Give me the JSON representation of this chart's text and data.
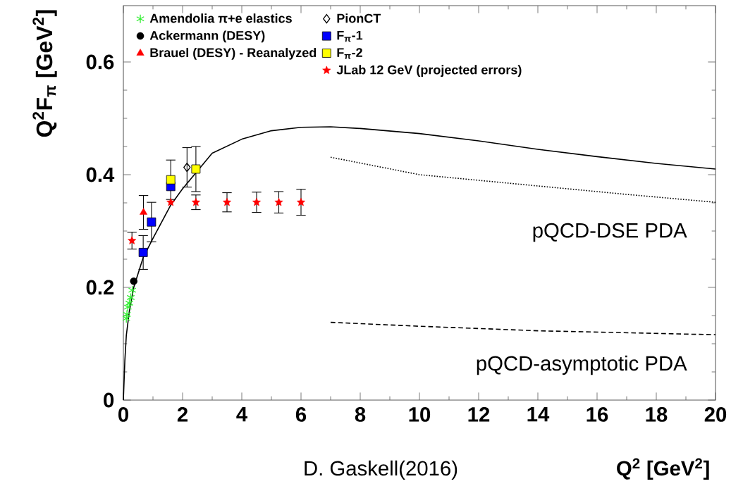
{
  "chart_data": {
    "type": "scatter",
    "xlabel": "Q$^{2}$ [GeV$^{2}$]",
    "ylabel": "Q$^{2}$F$_{π}$ [GeV$^{2}$]",
    "xlim": [
      0,
      20
    ],
    "ylim": [
      0,
      0.7
    ],
    "xticks": [
      0,
      2,
      4,
      6,
      8,
      10,
      12,
      14,
      16,
      18,
      20
    ],
    "yticks": [
      0,
      0.2,
      0.4,
      0.6
    ],
    "grid": false,
    "legend": "top left",
    "annotations": [
      "D. Gaskell(2016)"
    ],
    "series": [
      {
        "name": "Amendolia π+e elastics",
        "marker": "cross",
        "color": "#33ee33",
        "x": [
          0.1,
          0.12,
          0.15,
          0.2,
          0.25,
          0.3
        ],
        "values": [
          0.145,
          0.152,
          0.165,
          0.172,
          0.182,
          0.195
        ]
      },
      {
        "name": "Ackermann (DESY)",
        "marker": "circle",
        "color": "#000000",
        "x": [
          0.35
        ],
        "values": [
          0.211
        ]
      },
      {
        "name": "Brauel (DESY) - Reanalyzed",
        "marker": "triangle",
        "color": "#ff0000",
        "x": [
          0.68
        ],
        "values": [
          0.333
        ],
        "errors": [
          0.03
        ]
      },
      {
        "name": "PionCT",
        "marker": "diamond",
        "color": "#000000",
        "x": [
          2.15
        ],
        "values": [
          0.413
        ],
        "errors": [
          0.035
        ]
      },
      {
        "name": "F$_{π}$-1",
        "marker": "square",
        "color": "#0000ff",
        "x": [
          0.67,
          0.95,
          1.6
        ],
        "values": [
          0.262,
          0.316,
          0.379
        ],
        "errors": [
          0.03,
          0.035,
          null
        ]
      },
      {
        "name": "F$_{π}$-2",
        "marker": "square",
        "color": "#ffff00",
        "x": [
          1.6,
          2.45
        ],
        "values": [
          0.391,
          0.41
        ],
        "errors": [
          0.035,
          0.04
        ]
      },
      {
        "name": "JLab 12 GeV (projected errors)",
        "marker": "star",
        "color": "#ff0000",
        "x": [
          0.29,
          1.6,
          2.45,
          3.5,
          4.5,
          5.25,
          6.0
        ],
        "values": [
          0.283,
          0.351,
          0.351,
          0.351,
          0.351,
          0.351,
          0.351
        ],
        "errors": [
          0.015,
          null,
          0.013,
          0.017,
          0.018,
          0.019,
          0.023
        ]
      },
      {
        "type": "line",
        "line_style": "solid",
        "color": "#000000",
        "x": [
          0,
          0.05,
          0.1,
          0.2,
          0.35,
          0.67,
          1,
          1.6,
          2,
          3,
          4,
          5,
          6,
          7,
          8,
          10,
          12,
          14,
          16,
          18,
          20
        ],
        "values": [
          0,
          0.07,
          0.115,
          0.157,
          0.2,
          0.253,
          0.287,
          0.346,
          0.375,
          0.438,
          0.463,
          0.478,
          0.484,
          0.485,
          0.482,
          0.473,
          0.46,
          0.445,
          0.432,
          0.42,
          0.41
        ]
      },
      {
        "name": "pQCD-DSE PDA",
        "type": "line",
        "line_style": "dotted",
        "color": "#000000",
        "x": [
          7,
          10,
          14,
          17,
          20
        ],
        "values": [
          0.431,
          0.4,
          0.38,
          0.365,
          0.351
        ]
      },
      {
        "name": "pQCD-asymptotic PDA",
        "type": "line",
        "line_style": "dashed",
        "color": "#000000",
        "x": [
          7,
          10,
          14,
          20
        ],
        "values": [
          0.138,
          0.131,
          0.123,
          0.116
        ]
      }
    ]
  }
}
